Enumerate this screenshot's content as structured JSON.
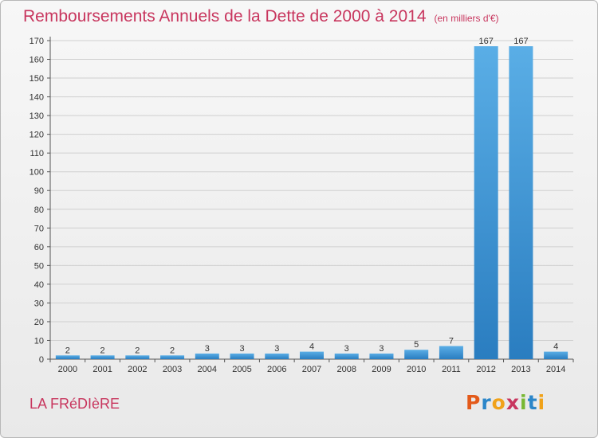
{
  "header": {
    "title": "Remboursements Annuels de la Dette de 2000 à 2014",
    "subtitle": "(en milliers d'€)"
  },
  "footer": {
    "place": "LA FRéDIèRE",
    "logo": "Proxiti"
  },
  "colors": {
    "title": "#c8365e",
    "bar_light": "#5aaee6",
    "bar_dark": "#2a7dc0",
    "grid": "#d0d0d0"
  },
  "chart_data": {
    "type": "bar",
    "title": "Remboursements Annuels de la Dette de 2000 à 2014",
    "subtitle": "(en milliers d'€)",
    "categories": [
      "2000",
      "2001",
      "2002",
      "2003",
      "2004",
      "2005",
      "2006",
      "2007",
      "2008",
      "2009",
      "2010",
      "2011",
      "2012",
      "2013",
      "2014"
    ],
    "values": [
      2,
      2,
      2,
      2,
      3,
      3,
      3,
      4,
      3,
      3,
      5,
      7,
      167,
      167,
      4
    ],
    "ylim": [
      0,
      170
    ],
    "yticks": [
      0,
      10,
      20,
      30,
      40,
      50,
      60,
      70,
      80,
      90,
      100,
      110,
      120,
      130,
      140,
      150,
      160,
      170
    ],
    "grid": true,
    "data_labels": true
  }
}
